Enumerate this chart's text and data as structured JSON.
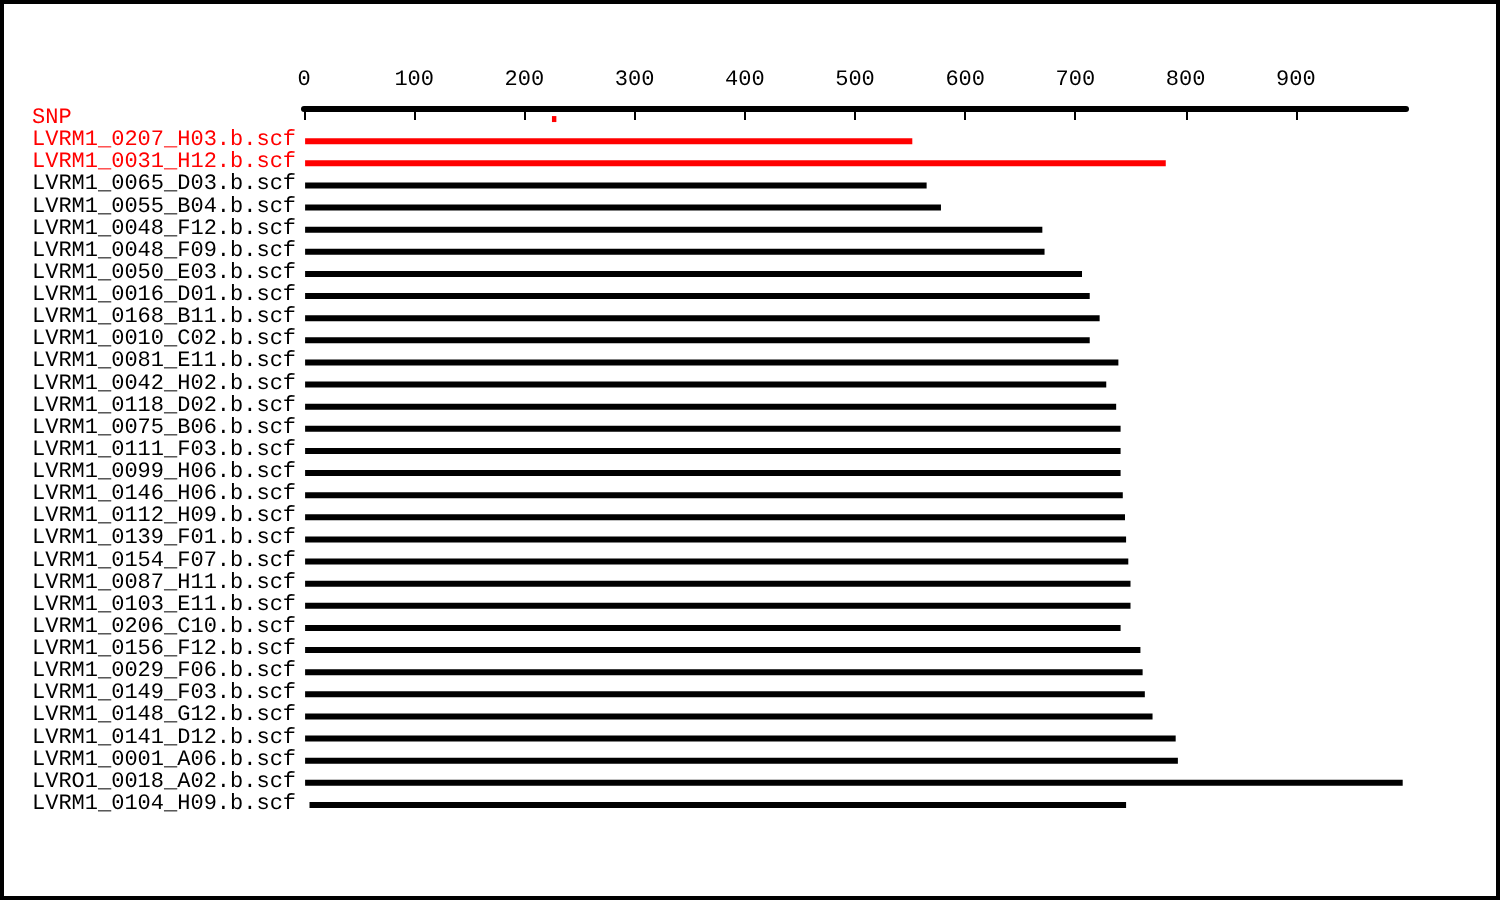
{
  "chart_data": {
    "type": "bar",
    "orientation": "horizontal",
    "categories": [
      "SNP",
      "LVRM1_0207_H03.b.scf",
      "LVRM1_0031_H12.b.scf",
      "LVRM1_0065_D03.b.scf",
      "LVRM1_0055_B04.b.scf",
      "LVRM1_0048_F12.b.scf",
      "LVRM1_0048_F09.b.scf",
      "LVRM1_0050_E03.b.scf",
      "LVRM1_0016_D01.b.scf",
      "LVRM1_0168_B11.b.scf",
      "LVRM1_0010_C02.b.scf",
      "LVRM1_0081_E11.b.scf",
      "LVRM1_0042_H02.b.scf",
      "LVRM1_0118_D02.b.scf",
      "LVRM1_0075_B06.b.scf",
      "LVRM1_0111_F03.b.scf",
      "LVRM1_0099_H06.b.scf",
      "LVRM1_0146_H06.b.scf",
      "LVRM1_0112_H09.b.scf",
      "LVRM1_0139_F01.b.scf",
      "LVRM1_0154_F07.b.scf",
      "LVRM1_0087_H11.b.scf",
      "LVRM1_0103_E11.b.scf",
      "LVRM1_0206_C10.b.scf",
      "LVRM1_0156_F12.b.scf",
      "LVRM1_0029_F06.b.scf",
      "LVRM1_0149_F03.b.scf",
      "LVRM1_0148_G12.b.scf",
      "LVRM1_0141_D12.b.scf",
      "LVRM1_0001_A06.b.scf",
      "LVRO1_0018_A02.b.scf",
      "LVRM1_0104_H09.b.scf"
    ],
    "base": [
      225,
      1,
      1,
      1,
      1,
      1,
      1,
      1,
      1,
      1,
      1,
      1,
      1,
      1,
      1,
      1,
      1,
      1,
      1,
      1,
      1,
      1,
      1,
      1,
      1,
      1,
      1,
      1,
      1,
      1,
      1,
      5
    ],
    "values": [
      4,
      551,
      781,
      564,
      577,
      669,
      671,
      705,
      712,
      721,
      712,
      738,
      727,
      736,
      740,
      740,
      740,
      742,
      744,
      745,
      747,
      749,
      749,
      740,
      758,
      760,
      762,
      769,
      790,
      792,
      996,
      741
    ],
    "colors": [
      "#ff0000",
      "#ff0000",
      "#ff0000",
      "#000000",
      "#000000",
      "#000000",
      "#000000",
      "#000000",
      "#000000",
      "#000000",
      "#000000",
      "#000000",
      "#000000",
      "#000000",
      "#000000",
      "#000000",
      "#000000",
      "#000000",
      "#000000",
      "#000000",
      "#000000",
      "#000000",
      "#000000",
      "#000000",
      "#000000",
      "#000000",
      "#000000",
      "#000000",
      "#000000",
      "#000000",
      "#000000",
      "#000000"
    ],
    "xlim": [
      0,
      1000
    ],
    "xticks": [
      0,
      100,
      200,
      300,
      400,
      500,
      600,
      700,
      800,
      900
    ]
  }
}
